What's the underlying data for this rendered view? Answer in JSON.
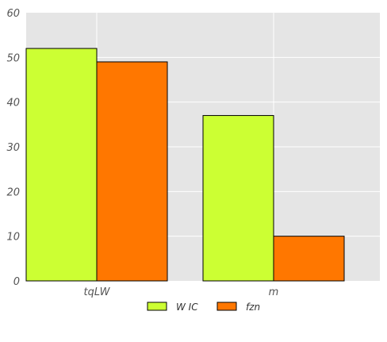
{
  "chart_data": {
    "type": "bar",
    "title": "",
    "xlabel": "",
    "ylabel": "",
    "categories": [
      "tqLW",
      "m"
    ],
    "series": [
      {
        "name": "W IC",
        "values": [
          52,
          37
        ],
        "color": "#CCFF33"
      },
      {
        "name": "fzn",
        "values": [
          49,
          10
        ],
        "color": "#FF7700"
      }
    ],
    "ylim": [
      0,
      60
    ],
    "yticks": [
      0,
      10,
      20,
      30,
      40,
      50,
      60
    ],
    "grid": true,
    "background": "#E5E5E5",
    "legend_position": "bottom-center"
  }
}
